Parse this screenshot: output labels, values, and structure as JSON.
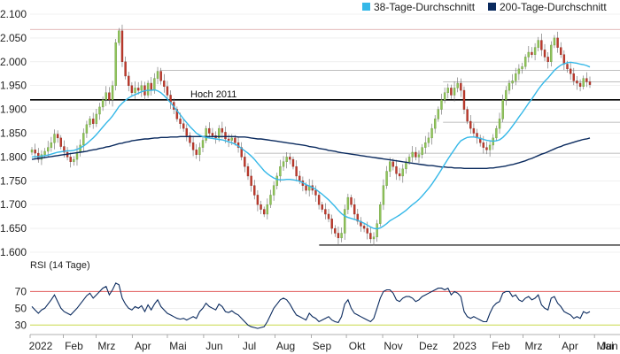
{
  "chart_data": {
    "type": "candlestick",
    "main_panel": {
      "ylim": [
        1600,
        2100
      ],
      "yticks": [
        "2.100",
        "2.050",
        "2.000",
        "1.950",
        "1.900",
        "1.850",
        "1.800",
        "1.750",
        "1.700",
        "1.650",
        "1.600"
      ],
      "ytick_values": [
        2100,
        2050,
        2000,
        1950,
        1900,
        1850,
        1800,
        1750,
        1700,
        1650,
        1600
      ],
      "legend": {
        "placement": "top-right",
        "items": [
          {
            "label": "38-Tage-Durchschnitt",
            "color": "#35B8E8"
          },
          {
            "label": "200-Tage-Durchschnitt",
            "color": "#0A2A5E"
          }
        ]
      },
      "annotation": {
        "text": "Hoch 2011",
        "value": 1920
      },
      "hlines": [
        {
          "value": 2068,
          "color": "#d9a0a0",
          "style": "thin",
          "from": 0.0,
          "to": 1.0
        },
        {
          "value": 1982,
          "color": "#aaaaaa",
          "style": "thin",
          "from": 0.22,
          "to": 1.0
        },
        {
          "value": 1958,
          "color": "#aaaaaa",
          "style": "thin",
          "from": 0.7,
          "to": 1.0
        },
        {
          "value": 1920,
          "color": "#000000",
          "style": "thick",
          "from": 0.0,
          "to": 1.0
        },
        {
          "value": 1873,
          "color": "#aaaaaa",
          "style": "thin",
          "from": 0.7,
          "to": 1.0
        },
        {
          "value": 1808,
          "color": "#aaaaaa",
          "style": "thin",
          "from": 0.38,
          "to": 1.0
        },
        {
          "value": 1615,
          "color": "#000000",
          "style": "medium",
          "from": 0.49,
          "to": 1.0
        }
      ],
      "close_series": [
        1815,
        1808,
        1795,
        1805,
        1812,
        1820,
        1830,
        1848,
        1840,
        1822,
        1810,
        1800,
        1790,
        1795,
        1810,
        1825,
        1850,
        1868,
        1880,
        1870,
        1890,
        1905,
        1920,
        1935,
        1920,
        1950,
        2040,
        2065,
        2000,
        1970,
        1950,
        1935,
        1945,
        1940,
        1950,
        1930,
        1955,
        1940,
        1965,
        1980,
        1960,
        1948,
        1930,
        1915,
        1900,
        1880,
        1870,
        1860,
        1845,
        1830,
        1815,
        1805,
        1820,
        1835,
        1860,
        1850,
        1845,
        1840,
        1860,
        1852,
        1838,
        1835,
        1840,
        1830,
        1820,
        1800,
        1780,
        1760,
        1740,
        1720,
        1700,
        1690,
        1680,
        1700,
        1720,
        1740,
        1760,
        1780,
        1790,
        1800,
        1795,
        1780,
        1760,
        1750,
        1740,
        1730,
        1740,
        1730,
        1720,
        1700,
        1690,
        1680,
        1670,
        1650,
        1640,
        1630,
        1640,
        1690,
        1715,
        1700,
        1680,
        1665,
        1655,
        1650,
        1640,
        1628,
        1632,
        1660,
        1700,
        1740,
        1770,
        1790,
        1780,
        1765,
        1760,
        1775,
        1790,
        1800,
        1810,
        1800,
        1805,
        1820,
        1830,
        1840,
        1860,
        1880,
        1900,
        1920,
        1935,
        1945,
        1930,
        1945,
        1955,
        1940,
        1900,
        1875,
        1860,
        1850,
        1840,
        1830,
        1820,
        1815,
        1825,
        1840,
        1860,
        1880,
        1920,
        1940,
        1955,
        1960,
        1975,
        1985,
        1990,
        2010,
        2020,
        2015,
        2030,
        2045,
        2025,
        2010,
        2000,
        2035,
        2050,
        2030,
        2015,
        1995,
        1985,
        1975,
        1960,
        1955,
        1948,
        1965,
        1958,
        1952
      ],
      "ma38": [
        1800,
        1801,
        1801,
        1802,
        1803,
        1804,
        1806,
        1808,
        1810,
        1811,
        1812,
        1813,
        1813,
        1814,
        1816,
        1819,
        1823,
        1828,
        1834,
        1840,
        1847,
        1855,
        1863,
        1871,
        1878,
        1886,
        1896,
        1906,
        1913,
        1919,
        1924,
        1928,
        1931,
        1934,
        1937,
        1939,
        1940,
        1940,
        1941,
        1939,
        1935,
        1929,
        1922,
        1914,
        1906,
        1897,
        1889,
        1880,
        1872,
        1864,
        1857,
        1850,
        1846,
        1843,
        1841,
        1840,
        1839,
        1838,
        1837,
        1836,
        1834,
        1832,
        1830,
        1827,
        1823,
        1818,
        1813,
        1808,
        1802,
        1795,
        1787,
        1779,
        1771,
        1765,
        1760,
        1756,
        1753,
        1752,
        1752,
        1753,
        1753,
        1752,
        1751,
        1749,
        1746,
        1742,
        1739,
        1736,
        1732,
        1727,
        1722,
        1716,
        1710,
        1703,
        1696,
        1688,
        1681,
        1676,
        1673,
        1671,
        1669,
        1667,
        1664,
        1661,
        1657,
        1653,
        1650,
        1649,
        1651,
        1655,
        1660,
        1666,
        1670,
        1674,
        1678,
        1683,
        1688,
        1694,
        1700,
        1705,
        1711,
        1718,
        1726,
        1734,
        1743,
        1753,
        1763,
        1774,
        1785,
        1796,
        1806,
        1816,
        1826,
        1834,
        1838,
        1841,
        1842,
        1842,
        1841,
        1839,
        1837,
        1835,
        1834,
        1833,
        1834,
        1836,
        1841,
        1848,
        1856,
        1865,
        1874,
        1884,
        1893,
        1903,
        1913,
        1922,
        1932,
        1942,
        1951,
        1959,
        1966,
        1974,
        1982,
        1988,
        1993,
        1996,
        1998,
        1999,
        1998,
        1997,
        1995,
        1994,
        1992,
        1989
      ],
      "ma200": [
        1795,
        1796,
        1797,
        1798,
        1799,
        1800,
        1801,
        1802,
        1803,
        1804,
        1805,
        1806,
        1807,
        1808,
        1809,
        1810,
        1811,
        1812,
        1814,
        1815,
        1816,
        1818,
        1819,
        1821,
        1822,
        1824,
        1826,
        1828,
        1829,
        1831,
        1832,
        1834,
        1835,
        1836,
        1837,
        1838,
        1838,
        1839,
        1840,
        1840,
        1841,
        1841,
        1841,
        1842,
        1842,
        1842,
        1843,
        1843,
        1843,
        1843,
        1843,
        1843,
        1843,
        1843,
        1843,
        1843,
        1843,
        1843,
        1843,
        1843,
        1843,
        1843,
        1843,
        1843,
        1842,
        1842,
        1842,
        1841,
        1840,
        1839,
        1838,
        1838,
        1837,
        1836,
        1835,
        1834,
        1833,
        1832,
        1831,
        1830,
        1829,
        1828,
        1827,
        1826,
        1825,
        1824,
        1822,
        1821,
        1820,
        1818,
        1817,
        1816,
        1814,
        1813,
        1812,
        1810,
        1809,
        1808,
        1807,
        1806,
        1805,
        1804,
        1803,
        1802,
        1801,
        1800,
        1799,
        1798,
        1797,
        1796,
        1795,
        1794,
        1793,
        1792,
        1791,
        1790,
        1789,
        1788,
        1787,
        1786,
        1785,
        1784,
        1783,
        1782,
        1782,
        1781,
        1780,
        1779,
        1779,
        1778,
        1778,
        1777,
        1777,
        1777,
        1776,
        1776,
        1776,
        1776,
        1776,
        1776,
        1776,
        1776,
        1777,
        1777,
        1778,
        1779,
        1780,
        1781,
        1783,
        1784,
        1786,
        1788,
        1790,
        1792,
        1795,
        1797,
        1800,
        1803,
        1806,
        1808,
        1811,
        1814,
        1817,
        1820,
        1822,
        1825,
        1827,
        1829,
        1831,
        1833,
        1835,
        1837,
        1838,
        1840
      ]
    },
    "rsi_panel": {
      "title": "RSI (14 Tage)",
      "ylim": [
        25,
        82
      ],
      "yticks": [
        "70",
        "50",
        "30"
      ],
      "ytick_values": [
        70,
        50,
        30
      ],
      "overbought": 70,
      "oversold": 30,
      "overbought_color": "#e05a5a",
      "oversold_color": "#c8d84a",
      "series_color": "#0A2A5E",
      "values": [
        52,
        48,
        44,
        48,
        50,
        55,
        60,
        66,
        58,
        50,
        46,
        44,
        42,
        46,
        50,
        55,
        60,
        65,
        68,
        62,
        66,
        70,
        74,
        76,
        66,
        72,
        80,
        78,
        62,
        55,
        50,
        48,
        52,
        50,
        53,
        46,
        54,
        48,
        55,
        60,
        52,
        48,
        44,
        42,
        40,
        38,
        37,
        38,
        36,
        38,
        40,
        38,
        46,
        50,
        56,
        52,
        50,
        48,
        55,
        52,
        46,
        45,
        47,
        44,
        42,
        38,
        34,
        30,
        28,
        27,
        26,
        27,
        28,
        34,
        42,
        50,
        55,
        60,
        62,
        60,
        55,
        48,
        42,
        40,
        38,
        36,
        44,
        40,
        38,
        34,
        36,
        38,
        40,
        36,
        34,
        33,
        40,
        55,
        60,
        50,
        44,
        42,
        40,
        38,
        36,
        34,
        38,
        50,
        62,
        70,
        72,
        72,
        68,
        60,
        58,
        62,
        64,
        64,
        62,
        58,
        60,
        64,
        66,
        68,
        70,
        72,
        74,
        74,
        72,
        74,
        66,
        70,
        68,
        64,
        46,
        40,
        38,
        40,
        38,
        36,
        34,
        34,
        44,
        52,
        56,
        58,
        68,
        70,
        70,
        64,
        66,
        60,
        58,
        62,
        64,
        60,
        62,
        66,
        54,
        50,
        48,
        62,
        64,
        56,
        52,
        46,
        44,
        42,
        38,
        40,
        38,
        46,
        44,
        46
      ]
    },
    "x_axis": {
      "labels": [
        "2022",
        "Feb",
        "Mrz",
        "Apr",
        "Mai",
        "Jun",
        "Jul",
        "Aug",
        "Sep",
        "Okt",
        "Nov",
        "Dez",
        "2023",
        "Feb",
        "Mrz",
        "Apr",
        "Mai",
        "Jun"
      ],
      "positions": [
        0,
        0.0592,
        0.1177,
        0.1825,
        0.2452,
        0.31,
        0.3727,
        0.4375,
        0.5023,
        0.565,
        0.6298,
        0.6925,
        0.7573,
        0.8221,
        0.8806,
        0.9454,
        1.0082,
        1.073
      ]
    }
  }
}
